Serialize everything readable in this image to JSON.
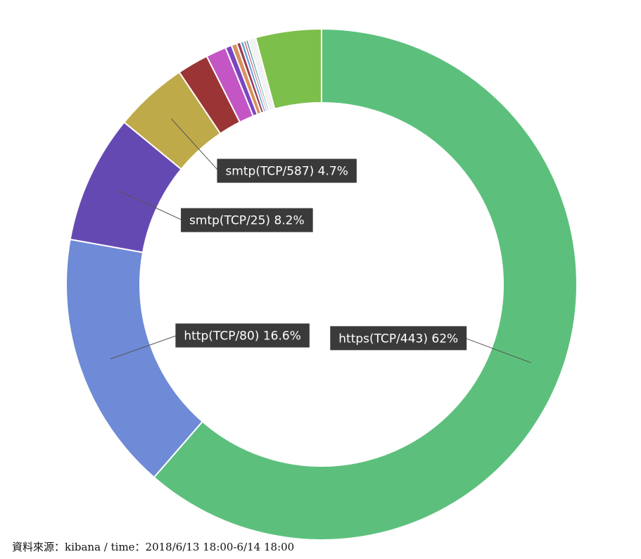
{
  "chart_data": {
    "type": "pie",
    "style": "donut",
    "slices": [
      {
        "label": "https(TCP/443) 62%",
        "name": "https(TCP/443)",
        "value": 62.0,
        "color": "#5cc07c"
      },
      {
        "label": "http(TCP/80) 16.6%",
        "name": "http(TCP/80)",
        "value": 16.6,
        "color": "#6f8ad6"
      },
      {
        "label": "smtp(TCP/25) 8.2%",
        "name": "smtp(TCP/25)",
        "value": 8.2,
        "color": "#6549b3"
      },
      {
        "label": "smtp(TCP/587) 4.7%",
        "name": "smtp(TCP/587)",
        "value": 4.7,
        "color": "#bfaa4a"
      },
      {
        "value": 2.0,
        "color": "#9b3535"
      },
      {
        "value": 1.3,
        "color": "#c455c4"
      },
      {
        "value": 0.4,
        "color": "#7b45c2"
      },
      {
        "value": 0.35,
        "color": "#d6935e"
      },
      {
        "value": 0.25,
        "color": "#9b3b52"
      },
      {
        "value": 0.2,
        "color": "#5a9fd6"
      },
      {
        "value": 0.15,
        "color": "#c04a6e"
      },
      {
        "value": 0.15,
        "color": "#2f8f8f"
      },
      {
        "value": 0.5,
        "color": "#f2f2f2"
      },
      {
        "value": 4.2,
        "color": "#7cbf4a"
      }
    ],
    "start_angle_deg": 0,
    "direction": "clockwise"
  },
  "footer": {
    "text": "資料來源：kibana / time：2018/6/13 18:00-6/14 18:00"
  }
}
